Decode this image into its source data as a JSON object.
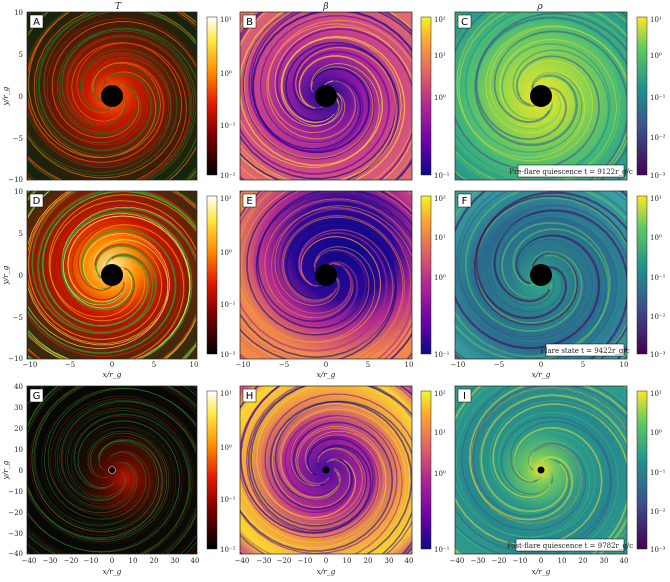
{
  "figure": {
    "column_titles": [
      "T",
      "β",
      "ρ"
    ],
    "x_label": "x/r_g",
    "y_label": "y/r_g",
    "rows": [
      {
        "panels": [
          "A",
          "B",
          "C"
        ],
        "annotation": "Pre-flare quiescence t = 9122r_g/c",
        "x_ticks": [],
        "y_ticks": [
          "10",
          "5",
          "0",
          "−5",
          "−10"
        ]
      },
      {
        "panels": [
          "D",
          "E",
          "F"
        ],
        "annotation": "Flare state t = 9422r_g/c",
        "x_ticks": [
          "−10",
          "−5",
          "0",
          "5",
          "10"
        ],
        "y_ticks": [
          "10",
          "5",
          "0",
          "−5",
          "−10"
        ]
      },
      {
        "panels": [
          "G",
          "H",
          "I"
        ],
        "annotation": "Post-flare quiescence t = 9782r_g/c",
        "x_ticks": [
          "−40",
          "−30",
          "−20",
          "−10",
          "0",
          "10",
          "20",
          "30",
          "40"
        ],
        "y_ticks": [
          "40",
          "30",
          "20",
          "10",
          "0",
          "−10",
          "−20",
          "−30",
          "−40"
        ]
      }
    ],
    "colorbars": [
      {
        "scheme": "hot",
        "ticks": [
          "10¹",
          "10⁰",
          "10⁻¹",
          "10⁻²"
        ]
      },
      {
        "scheme": "plasma",
        "ticks": [
          "10²",
          "10¹",
          "10⁰",
          "10⁻¹"
        ]
      },
      {
        "scheme": "viridis",
        "ticks": [
          "10¹",
          "10⁰",
          "10⁻¹",
          "10⁻²",
          "10⁻³"
        ]
      }
    ]
  },
  "colors": {
    "hot": [
      "#000000",
      "#7a0000",
      "#e01a00",
      "#ff8a00",
      "#ffe840",
      "#ffffff"
    ],
    "plasma": [
      "#0d0887",
      "#6a00a8",
      "#b12a90",
      "#e16462",
      "#fca636",
      "#f0f921"
    ],
    "viridis": [
      "#440154",
      "#3b528b",
      "#21918c",
      "#5ec962",
      "#fde725"
    ],
    "streamline": "#2e9b2e"
  }
}
